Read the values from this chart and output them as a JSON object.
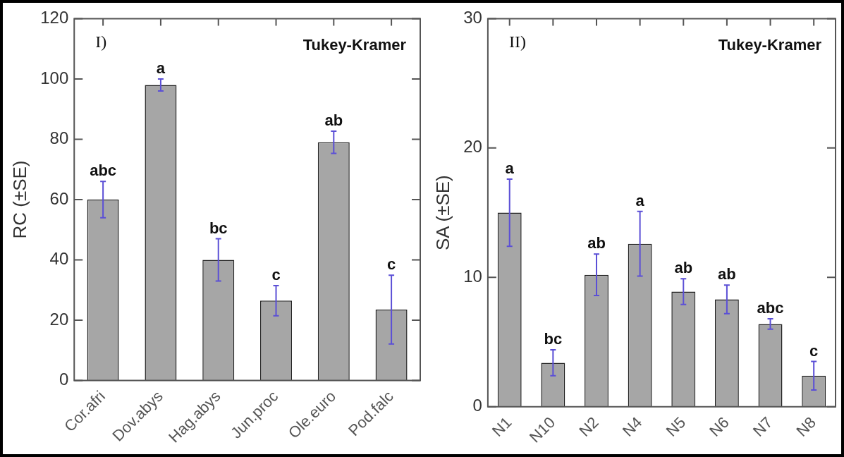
{
  "chart_data": [
    {
      "type": "bar",
      "ylabel": "RC (±SE)",
      "categories": [
        "Cor.afri",
        "Dov.abys",
        "Hag.abys",
        "Jun.proc",
        "Ole.euro",
        "Pod.falc"
      ],
      "series": [
        {
          "color": "#a6a6a6",
          "values": [
            60,
            98,
            40,
            26.5,
            79,
            23.5
          ],
          "errors": [
            6,
            2,
            7,
            5,
            3.7,
            11.4
          ]
        }
      ],
      "ylim": [
        0,
        120
      ],
      "yticks": [
        0,
        20,
        40,
        60,
        80,
        100,
        120
      ],
      "grid": false,
      "legend": false,
      "annotations": [
        "I)",
        "Tukey-Kramer",
        {
          "text": "abc",
          "x": "Cor.afri",
          "y": 66
        },
        {
          "text": "a",
          "x": "Dov.abys",
          "y": 100
        },
        {
          "text": "bc",
          "x": "Hag.abys",
          "y": 47
        },
        {
          "text": "c",
          "x": "Jun.proc",
          "y": 31.5
        },
        {
          "text": "ab",
          "x": "Ole.euro",
          "y": 82.7
        },
        {
          "text": "c",
          "x": "Pod.falc",
          "y": 34.9
        }
      ]
    },
    {
      "type": "bar",
      "ylabel": "SA (±SE)",
      "categories": [
        "N1",
        "N10",
        "N2",
        "N4",
        "N5",
        "N6",
        "N7",
        "N8"
      ],
      "series": [
        {
          "color": "#a6a6a6",
          "values": [
            15,
            3.4,
            10.2,
            12.6,
            8.9,
            8.3,
            6.4,
            2.4
          ],
          "errors": [
            2.6,
            1,
            1.6,
            2.5,
            1,
            1.1,
            0.4,
            1.1
          ]
        }
      ],
      "ylim": [
        0,
        30
      ],
      "yticks": [
        0,
        10,
        20,
        30
      ],
      "grid": false,
      "legend": false,
      "annotations": [
        "II)",
        "Tukey-Kramer",
        {
          "text": "a",
          "x": "N1",
          "y": 17.6
        },
        {
          "text": "bc",
          "x": "N10",
          "y": 4.4
        },
        {
          "text": "ab",
          "x": "N2",
          "y": 11.8
        },
        {
          "text": "a",
          "x": "N4",
          "y": 15.1
        },
        {
          "text": "ab",
          "x": "N5",
          "y": 9.9
        },
        {
          "text": "ab",
          "x": "N6",
          "y": 9.4
        },
        {
          "text": "abc",
          "x": "N7",
          "y": 6.8
        },
        {
          "text": "c",
          "x": "N8",
          "y": 3.5
        }
      ]
    }
  ]
}
